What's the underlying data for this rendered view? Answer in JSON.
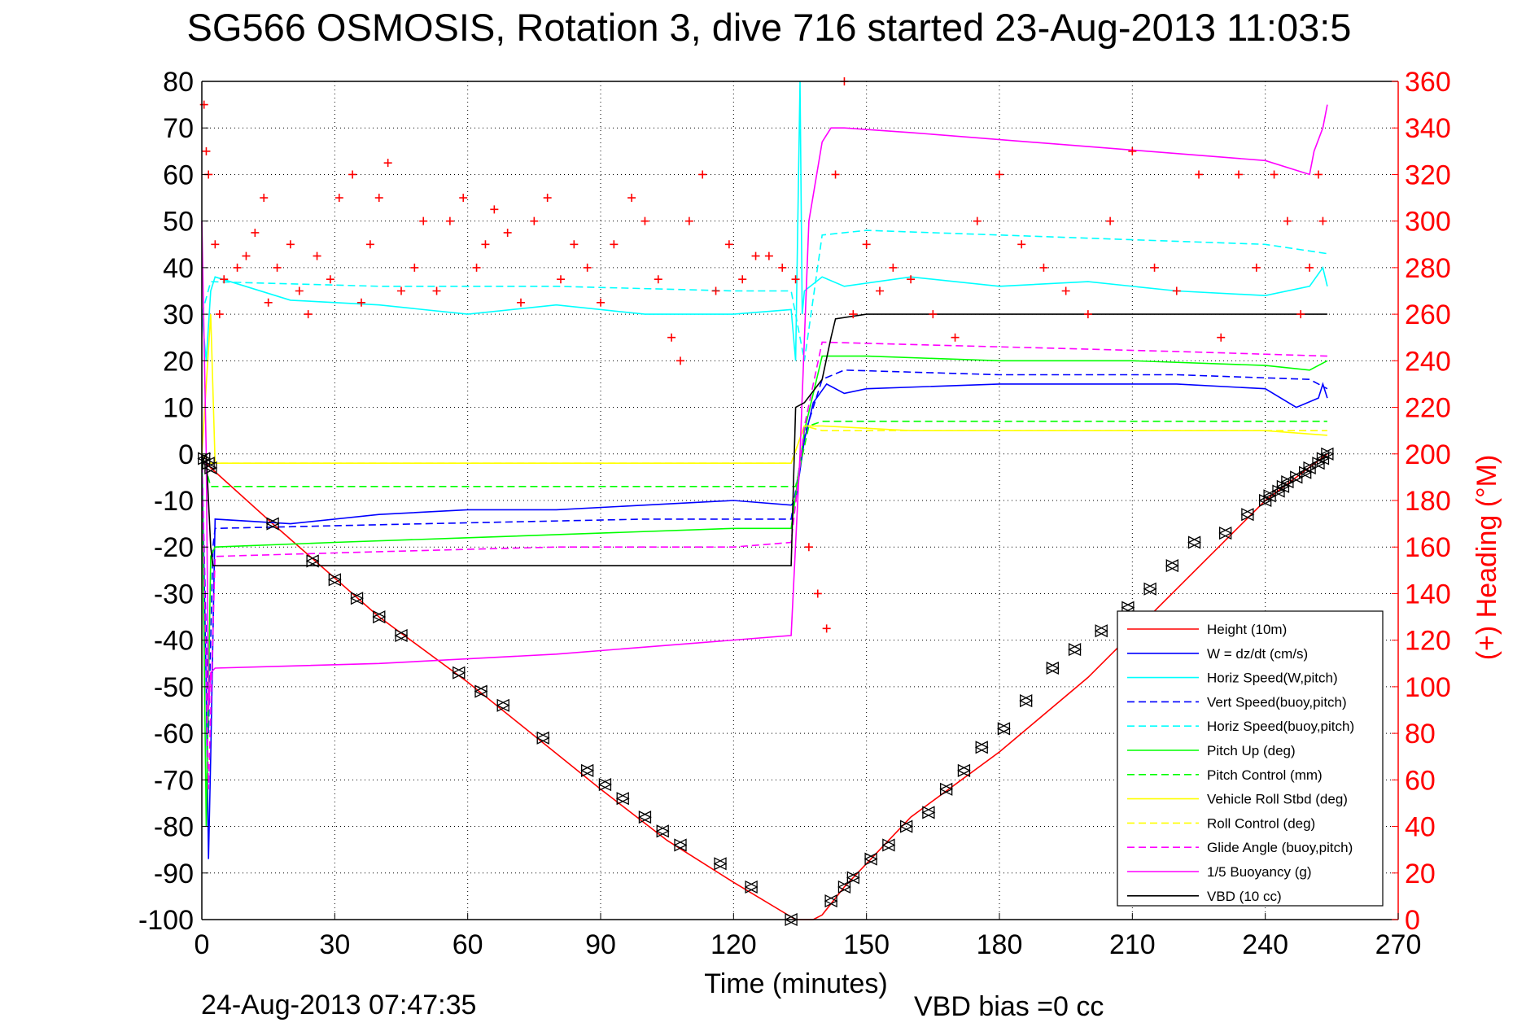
{
  "title": "SG566 OSMOSIS, Rotation 3, dive 716 started 23-Aug-2013 11:03:5",
  "footer": {
    "timestamp": "24-Aug-2013 07:47:35",
    "vbd_bias": "VBD bias =0 cc"
  },
  "chart_data": {
    "type": "line",
    "title": "SG566 OSMOSIS, Rotation 3, dive 716 started 23-Aug-2013 11:03:5",
    "xlabel": "Time (minutes)",
    "ylabel": "",
    "y2label": "(+) Heading (°M)",
    "xlim": [
      0,
      270
    ],
    "ylim": [
      -100,
      80
    ],
    "y2lim": [
      0,
      360
    ],
    "xticks": [
      0,
      30,
      60,
      90,
      120,
      150,
      180,
      210,
      240,
      270
    ],
    "yticks": [
      80,
      70,
      60,
      50,
      40,
      30,
      20,
      10,
      0,
      -10,
      -20,
      -30,
      -40,
      -50,
      -60,
      -70,
      -80,
      -90,
      -100
    ],
    "y2ticks": [
      360,
      340,
      320,
      300,
      280,
      260,
      240,
      220,
      200,
      180,
      160,
      140,
      120,
      100,
      80,
      60,
      40,
      20,
      0
    ],
    "grid": true,
    "legend_position": "lower-right",
    "colors": {
      "red": "#ff0000",
      "blue": "#0000ff",
      "cyan": "#00ffff",
      "green": "#00ff00",
      "yellow": "#ffff00",
      "magenta": "#ff00ff",
      "black": "#000000"
    },
    "series": [
      {
        "name": "Height (10m)",
        "color": "#ff0000",
        "style": "solid",
        "x": [
          0,
          2,
          16,
          40,
          60,
          90,
          105,
          120,
          134,
          136,
          138,
          140,
          145,
          160,
          180,
          200,
          220,
          240,
          254
        ],
        "y": [
          -1,
          -3,
          -15,
          -35,
          -49,
          -72,
          -83,
          -92,
          -100,
          -100,
          -100,
          -99,
          -93,
          -78,
          -64,
          -48,
          -29,
          -10,
          0
        ]
      },
      {
        "name": "W = dz/dt (cm/s)",
        "color": "#0000ff",
        "style": "solid",
        "x": [
          0,
          1,
          1.5,
          2,
          3,
          20,
          40,
          60,
          80,
          100,
          120,
          133,
          134,
          136,
          138,
          141,
          145,
          150,
          180,
          200,
          220,
          240,
          247,
          252,
          253,
          254
        ],
        "y": [
          0,
          -50,
          -87,
          -65,
          -14,
          -15,
          -13,
          -12,
          -12,
          -11,
          -10,
          -11,
          -10,
          3,
          11,
          15,
          13,
          14,
          15,
          15,
          15,
          14,
          10,
          12,
          15,
          12
        ]
      },
      {
        "name": "Horiz Speed(W,pitch)",
        "color": "#00ffff",
        "style": "solid",
        "x": [
          0,
          1,
          2,
          3,
          20,
          40,
          60,
          80,
          100,
          120,
          133,
          134,
          135,
          135.5,
          136,
          140,
          145,
          160,
          180,
          200,
          220,
          240,
          250,
          253,
          254
        ],
        "y": [
          30,
          20,
          35,
          38,
          33,
          32,
          30,
          32,
          30,
          30,
          31,
          20,
          80,
          30,
          35,
          38,
          36,
          38,
          36,
          37,
          35,
          34,
          36,
          40,
          36
        ]
      },
      {
        "name": "Vert Speed(buoy,pitch)",
        "color": "#0000ff",
        "style": "dashed",
        "x": [
          0,
          1.5,
          2.5,
          3,
          50,
          100,
          133,
          136,
          140,
          145,
          180,
          220,
          250,
          254
        ],
        "y": [
          0,
          -60,
          -20,
          -16,
          -15,
          -14,
          -14,
          4,
          16,
          18,
          17,
          17,
          16,
          14
        ]
      },
      {
        "name": "Horiz Speed(buoy,pitch)",
        "color": "#00ffff",
        "style": "dashed",
        "x": [
          0,
          2,
          40,
          80,
          120,
          133,
          136,
          140,
          150,
          180,
          210,
          240,
          254
        ],
        "y": [
          30,
          37,
          36,
          36,
          35,
          35,
          20,
          47,
          48,
          47,
          46,
          45,
          43
        ]
      },
      {
        "name": "Pitch Up (deg)",
        "color": "#00ff00",
        "style": "solid",
        "x": [
          0,
          1,
          2,
          3,
          30,
          60,
          90,
          120,
          133,
          136,
          140,
          150,
          180,
          210,
          240,
          250,
          254
        ],
        "y": [
          0,
          -80,
          -22,
          -20,
          -19,
          -18,
          -17,
          -16,
          -16,
          5,
          21,
          21,
          20,
          20,
          19,
          18,
          20
        ]
      },
      {
        "name": "Pitch Control (mm)",
        "color": "#00ff00",
        "style": "dashed",
        "x": [
          0,
          2,
          3,
          133,
          134,
          137,
          140,
          254
        ],
        "y": [
          0,
          -7,
          -7,
          -7,
          -7,
          6,
          7,
          7
        ]
      },
      {
        "name": "Vehicle Roll Stbd (deg)",
        "color": "#ffff00",
        "style": "solid",
        "x": [
          0,
          2,
          3,
          40,
          80,
          120,
          133,
          136,
          140,
          160,
          200,
          240,
          254
        ],
        "y": [
          0,
          30,
          -2,
          -2,
          -2,
          -2,
          -2,
          6,
          6,
          5,
          5,
          5,
          4
        ]
      },
      {
        "name": "Roll Control (deg)",
        "color": "#ffff00",
        "style": "dashed",
        "x": [
          0,
          2,
          3,
          133,
          136,
          140,
          254
        ],
        "y": [
          0,
          -2,
          -2,
          -2,
          6,
          5,
          5
        ]
      },
      {
        "name": "Glide Angle (buoy,pitch)",
        "color": "#ff00ff",
        "style": "dashed",
        "x": [
          0,
          1.5,
          3,
          40,
          80,
          120,
          133,
          136,
          140,
          180,
          220,
          254
        ],
        "y": [
          0,
          -72,
          -22,
          -21,
          -20,
          -20,
          -19,
          6,
          24,
          23,
          22,
          21
        ]
      },
      {
        "name": "1/5 Buoyancy (g)",
        "color": "#ff00ff",
        "style": "solid",
        "x": [
          0,
          1,
          1.5,
          2,
          3,
          40,
          80,
          133,
          135,
          137,
          140,
          142,
          145,
          160,
          200,
          240,
          250,
          251,
          253,
          254
        ],
        "y": [
          50,
          0,
          -55,
          -47,
          -46,
          -45,
          -43,
          -39,
          0,
          50,
          67,
          70,
          70,
          69,
          66,
          63,
          60,
          65,
          70,
          75
        ]
      },
      {
        "name": "VBD (10 cc)",
        "color": "#000000",
        "style": "solid",
        "x": [
          0,
          1,
          2,
          2.5,
          60,
          133,
          134,
          136,
          140,
          142,
          143,
          150,
          254
        ],
        "y": [
          -2,
          0,
          -20,
          -24,
          -24,
          -24,
          10,
          11,
          16,
          25,
          29,
          30,
          30
        ]
      }
    ],
    "heading_points": {
      "name": "(+) Heading (°M)",
      "color": "#ff0000",
      "marker": "+",
      "axis": "right",
      "x": [
        0.5,
        1,
        1.5,
        3,
        4,
        5,
        8,
        10,
        12,
        14,
        15,
        17,
        20,
        22,
        24,
        26,
        29,
        31,
        34,
        36,
        38,
        40,
        42,
        45,
        48,
        50,
        53,
        56,
        59,
        62,
        64,
        66,
        69,
        72,
        75,
        78,
        81,
        84,
        87,
        90,
        93,
        97,
        100,
        103,
        106,
        108,
        110,
        113,
        116,
        119,
        122,
        125,
        128,
        131,
        134,
        137,
        139,
        141,
        143,
        145,
        147,
        150,
        153,
        156,
        160,
        165,
        170,
        175,
        180,
        185,
        190,
        195,
        200,
        205,
        210,
        215,
        220,
        225,
        230,
        234,
        238,
        242,
        245,
        248,
        250,
        252,
        253
      ],
      "y": [
        350,
        330,
        320,
        290,
        260,
        275,
        280,
        285,
        295,
        310,
        265,
        280,
        290,
        270,
        260,
        285,
        275,
        310,
        320,
        265,
        290,
        310,
        325,
        270,
        280,
        300,
        270,
        300,
        310,
        280,
        290,
        305,
        295,
        265,
        300,
        310,
        275,
        290,
        280,
        265,
        290,
        310,
        300,
        275,
        250,
        240,
        300,
        320,
        270,
        290,
        275,
        285,
        285,
        280,
        275,
        160,
        140,
        125,
        320,
        360,
        260,
        290,
        270,
        280,
        275,
        260,
        250,
        300,
        320,
        290,
        280,
        270,
        260,
        300,
        330,
        280,
        270,
        320,
        250,
        320,
        280,
        320,
        300,
        260,
        280,
        320,
        300
      ]
    },
    "markers": {
      "name": "Height (10m) samples",
      "marker": "triangles",
      "color": "#000000",
      "x": [
        0.5,
        1.5,
        2,
        16,
        25,
        30,
        35,
        40,
        45,
        58,
        63,
        68,
        77,
        87,
        91,
        95,
        100,
        104,
        108,
        117,
        124,
        133,
        142,
        145,
        147,
        151,
        155,
        159,
        164,
        168,
        172,
        176,
        181,
        186,
        192,
        197,
        203,
        209,
        214,
        219,
        224,
        231,
        236,
        240,
        241,
        243,
        244,
        245,
        247,
        249,
        250,
        252,
        253,
        254
      ],
      "y": [
        -1,
        -2,
        -3,
        -15,
        -23,
        -27,
        -31,
        -35,
        -39,
        -47,
        -51,
        -54,
        -61,
        -68,
        -71,
        -74,
        -78,
        -81,
        -84,
        -88,
        -93,
        -100,
        -96,
        -93,
        -91,
        -87,
        -84,
        -80,
        -77,
        -72,
        -68,
        -63,
        -59,
        -53,
        -46,
        -42,
        -38,
        -33,
        -29,
        -24,
        -19,
        -17,
        -13,
        -10,
        -9,
        -8,
        -7,
        -6,
        -5,
        -4,
        -3,
        -2,
        -1,
        0
      ]
    }
  }
}
